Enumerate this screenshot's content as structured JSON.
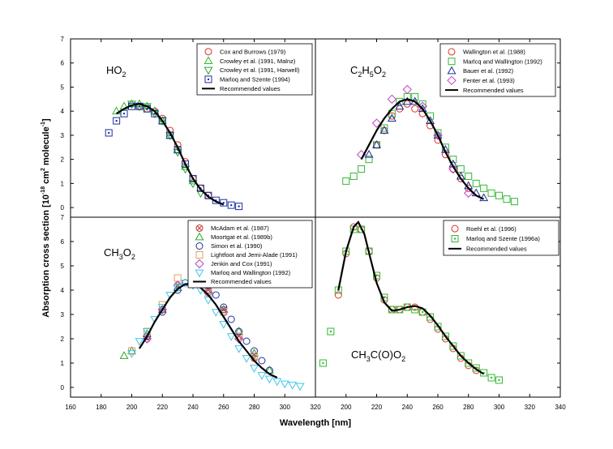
{
  "figure": {
    "ylabel_main": "Absorption cross section [10",
    "ylabel_exp1": "-18",
    "ylabel_mid": " cm",
    "ylabel_exp2": "2",
    "ylabel_mid2": " molecule",
    "ylabel_exp3": "-1",
    "ylabel_end": "]",
    "xlabel": "Wavelength [nm]",
    "y_ticks": [
      "0",
      "1",
      "2",
      "3",
      "4",
      "5",
      "6",
      "7"
    ],
    "x_ticks_left": [
      "160",
      "180",
      "200",
      "220",
      "240",
      "260",
      "280",
      "300",
      "320"
    ],
    "x_ticks_right": [
      "200",
      "220",
      "240",
      "260",
      "280",
      "300",
      "320",
      "340"
    ]
  },
  "chart_data": [
    {
      "type": "scatter",
      "title": "HO2",
      "species_main": "HO",
      "species_sub": "2",
      "xlim": [
        160,
        320
      ],
      "ylim": [
        -0.4,
        7
      ],
      "legend_position": "top-right",
      "series": [
        {
          "name": "Cox and Burrows (1979)",
          "marker": "circle",
          "color": "#e0302a",
          "x": [
            205,
            210,
            215,
            220,
            225,
            230,
            235,
            240,
            245,
            250
          ],
          "y": [
            4.2,
            4.1,
            4.0,
            3.7,
            3.2,
            2.6,
            1.9,
            1.2,
            0.8,
            0.5
          ]
        },
        {
          "name": "Crowley et al. (1991, Malnz)",
          "marker": "triangle-up",
          "color": "#33b833",
          "x": [
            190,
            195,
            200,
            205,
            210,
            215,
            220,
            225,
            230,
            235,
            240
          ],
          "y": [
            4.0,
            4.2,
            4.3,
            4.3,
            4.2,
            4.0,
            3.6,
            3.0,
            2.4,
            1.7,
            1.1
          ]
        },
        {
          "name": "Crowley et al. (1991, Harwell)",
          "marker": "triangle-down",
          "color": "#2aa82a",
          "x": [
            200,
            205,
            210,
            215,
            220,
            225,
            230,
            235,
            240,
            245
          ],
          "y": [
            4.3,
            4.2,
            4.2,
            3.9,
            3.6,
            3.0,
            2.3,
            1.6,
            1.0,
            0.6
          ]
        },
        {
          "name": "Marloq and Szente (1994)",
          "marker": "square-dot",
          "color": "#1b2f9e",
          "x": [
            185,
            190,
            195,
            200,
            205,
            210,
            215,
            220,
            225,
            230,
            235,
            240,
            245,
            250,
            255,
            260,
            265,
            270
          ],
          "y": [
            3.1,
            3.6,
            3.9,
            4.2,
            4.2,
            4.1,
            3.9,
            3.6,
            3.0,
            2.4,
            1.8,
            1.2,
            0.8,
            0.5,
            0.3,
            0.2,
            0.1,
            0.05
          ]
        },
        {
          "name": "Recommended values",
          "marker": "line",
          "color": "#000000",
          "x": [
            190,
            195,
            200,
            205,
            210,
            215,
            220,
            225,
            230,
            235,
            240,
            245,
            250,
            255,
            260
          ],
          "y": [
            3.9,
            4.1,
            4.25,
            4.3,
            4.2,
            4.0,
            3.6,
            3.1,
            2.5,
            1.8,
            1.2,
            0.75,
            0.45,
            0.25,
            0.12
          ]
        }
      ]
    },
    {
      "type": "scatter",
      "title": "C2H5O2",
      "species_main": "C",
      "species_sub": "2",
      "species_main2": "H",
      "species_sub2": "5",
      "species_main3": "O",
      "species_sub3": "2",
      "xlim": [
        180,
        340
      ],
      "ylim": [
        -0.4,
        7
      ],
      "legend_position": "top-right",
      "series": [
        {
          "name": "Wallington et al. (1988)",
          "marker": "circle",
          "color": "#e0302a",
          "x": [
            220,
            225,
            230,
            235,
            240,
            245,
            250,
            255,
            260,
            265,
            270,
            275,
            280
          ],
          "y": [
            2.6,
            3.2,
            3.8,
            4.1,
            4.3,
            4.1,
            3.9,
            3.4,
            2.8,
            2.2,
            1.6,
            1.2,
            0.8
          ]
        },
        {
          "name": "Marlcq and Wallington (1992)",
          "marker": "square",
          "color": "#33b833",
          "x": [
            200,
            205,
            210,
            215,
            220,
            225,
            230,
            235,
            240,
            245,
            250,
            255,
            260,
            265,
            270,
            275,
            280,
            285,
            290,
            295,
            300,
            305,
            310
          ],
          "y": [
            1.1,
            1.3,
            1.6,
            2.0,
            2.6,
            3.3,
            3.9,
            4.4,
            4.6,
            4.6,
            4.3,
            3.8,
            3.1,
            2.5,
            2.0,
            1.6,
            1.3,
            1.0,
            0.8,
            0.6,
            0.5,
            0.35,
            0.25
          ]
        },
        {
          "name": "Bauer et al. (1992)",
          "marker": "triangle-up",
          "color": "#1b2f9e",
          "x": [
            215,
            220,
            225,
            230,
            235,
            240,
            245,
            250,
            255,
            260,
            265,
            270,
            275,
            280,
            285,
            290
          ],
          "y": [
            2.2,
            2.6,
            3.2,
            3.7,
            4.2,
            4.4,
            4.4,
            4.1,
            3.6,
            3.0,
            2.4,
            1.8,
            1.3,
            0.9,
            0.6,
            0.4
          ]
        },
        {
          "name": "Fenter et al. (1993)",
          "marker": "diamond",
          "color": "#c040c0",
          "x": [
            210,
            220,
            230,
            240,
            250,
            260,
            270,
            280
          ],
          "y": [
            2.2,
            3.5,
            4.5,
            4.9,
            4.2,
            3.0,
            1.6,
            0.6
          ]
        },
        {
          "name": "Recommended values",
          "marker": "line",
          "color": "#000000",
          "x": [
            210,
            215,
            220,
            225,
            230,
            235,
            240,
            245,
            250,
            255,
            260,
            265,
            270,
            275,
            280,
            285,
            290
          ],
          "y": [
            2.0,
            2.6,
            3.2,
            3.7,
            4.1,
            4.4,
            4.5,
            4.4,
            4.1,
            3.6,
            3.0,
            2.3,
            1.7,
            1.2,
            0.8,
            0.5,
            0.35
          ]
        }
      ]
    },
    {
      "type": "scatter",
      "title": "CH3O2",
      "species_main": "CH",
      "species_sub": "3",
      "species_main2": "O",
      "species_sub2": "2",
      "xlim": [
        160,
        320
      ],
      "ylim": [
        -0.4,
        7
      ],
      "legend_position": "top-right",
      "series": [
        {
          "name": "McAdam et al. (1987)",
          "marker": "circle-x",
          "color": "#c0302a",
          "x": [
            210,
            220,
            230,
            240,
            250,
            260,
            270,
            280
          ],
          "y": [
            2.0,
            3.2,
            4.2,
            4.5,
            4.0,
            3.2,
            2.1,
            1.2
          ]
        },
        {
          "name": "Moortgat et al. (1989b)",
          "marker": "triangle-up",
          "color": "#2aa82a",
          "x": [
            195,
            200,
            210,
            220,
            230,
            240,
            250,
            260,
            270,
            280,
            290
          ],
          "y": [
            1.3,
            1.5,
            2.2,
            3.2,
            4.1,
            4.4,
            4.0,
            3.2,
            2.3,
            1.4,
            0.7
          ]
        },
        {
          "name": "Simon et al. (1990)",
          "marker": "circle",
          "color": "#1b2f9e",
          "x": [
            210,
            220,
            230,
            235,
            240,
            245,
            250,
            255,
            260,
            265,
            270,
            275,
            280,
            285,
            290
          ],
          "y": [
            2.1,
            3.1,
            4.0,
            4.3,
            4.5,
            4.4,
            4.2,
            3.8,
            3.3,
            2.8,
            2.3,
            1.9,
            1.5,
            1.1,
            0.7
          ]
        },
        {
          "name": "Lightfoot and Jemi-Alade (1991)",
          "marker": "square",
          "color": "#e0a060",
          "x": [
            200,
            210,
            220,
            230,
            240,
            250,
            260,
            270,
            280
          ],
          "y": [
            1.5,
            2.3,
            3.4,
            4.5,
            4.3,
            3.9,
            3.1,
            2.1,
            1.3
          ]
        },
        {
          "name": "Jenkin and Cox (1991)",
          "marker": "diamond",
          "color": "#c040c0",
          "x": [
            210,
            220,
            230,
            240,
            250,
            260,
            270
          ],
          "y": [
            2.0,
            3.2,
            4.2,
            4.4,
            3.9,
            3.1,
            2.0
          ]
        },
        {
          "name": "Marloq and Wallington (1992)",
          "marker": "triangle-down",
          "color": "#40c8e8",
          "x": [
            200,
            205,
            210,
            215,
            220,
            225,
            230,
            235,
            240,
            245,
            250,
            255,
            260,
            265,
            270,
            275,
            280,
            285,
            290,
            295,
            300,
            305,
            310
          ],
          "y": [
            1.4,
            1.9,
            2.3,
            2.8,
            3.3,
            3.8,
            4.1,
            4.3,
            4.2,
            4.0,
            3.6,
            3.1,
            2.6,
            2.1,
            1.6,
            1.2,
            0.8,
            0.5,
            0.35,
            0.25,
            0.15,
            0.1,
            0.05
          ]
        },
        {
          "name": "Recommended values",
          "marker": "line",
          "color": "#000000",
          "x": [
            205,
            210,
            215,
            220,
            225,
            230,
            235,
            240,
            245,
            250,
            255,
            260,
            265,
            270,
            275,
            280,
            285,
            290,
            295
          ],
          "y": [
            1.6,
            2.1,
            2.7,
            3.2,
            3.7,
            4.05,
            4.25,
            4.25,
            4.1,
            3.8,
            3.4,
            2.9,
            2.4,
            1.9,
            1.5,
            1.1,
            0.8,
            0.55,
            0.4
          ]
        }
      ]
    },
    {
      "type": "scatter",
      "title": "CH3C(O)O2",
      "species_main": "CH",
      "species_sub": "3",
      "species_main2": "C(O)O",
      "species_sub2": "2",
      "xlim": [
        180,
        340
      ],
      "ylim": [
        -0.4,
        7
      ],
      "legend_position": "top-right",
      "series": [
        {
          "name": "Roehl et al. (1996)",
          "marker": "circle",
          "color": "#e0302a",
          "x": [
            195,
            200,
            205,
            210,
            215,
            220,
            225,
            230,
            235,
            240,
            245,
            250,
            255,
            260,
            265,
            270,
            275,
            280,
            285
          ],
          "y": [
            3.8,
            5.5,
            6.6,
            6.5,
            5.6,
            4.5,
            3.6,
            3.2,
            3.2,
            3.3,
            3.3,
            3.1,
            2.8,
            2.4,
            2.0,
            1.6,
            1.2,
            0.9,
            0.7
          ]
        },
        {
          "name": "Marloq and Szente (1996a)",
          "marker": "square-dot",
          "color": "#33b833",
          "x": [
            185,
            190,
            195,
            200,
            205,
            210,
            215,
            220,
            225,
            230,
            235,
            240,
            245,
            250,
            255,
            260,
            265,
            270,
            275,
            280,
            285,
            290,
            295,
            300
          ],
          "y": [
            1.0,
            2.3,
            4.0,
            5.6,
            6.5,
            6.5,
            5.6,
            4.6,
            3.7,
            3.2,
            3.2,
            3.3,
            3.2,
            3.1,
            2.9,
            2.5,
            2.1,
            1.7,
            1.3,
            1.0,
            0.8,
            0.6,
            0.4,
            0.3
          ]
        },
        {
          "name": "Recommended values",
          "marker": "line",
          "color": "#000000",
          "x": [
            195,
            200,
            205,
            208,
            212,
            216,
            220,
            225,
            230,
            235,
            240,
            245,
            250,
            255,
            260,
            265,
            270,
            275,
            280,
            285,
            290
          ],
          "y": [
            4.0,
            5.6,
            6.6,
            6.8,
            6.3,
            5.3,
            4.3,
            3.5,
            3.15,
            3.2,
            3.3,
            3.35,
            3.25,
            2.95,
            2.55,
            2.1,
            1.7,
            1.3,
            1.0,
            0.75,
            0.55
          ]
        }
      ]
    }
  ]
}
